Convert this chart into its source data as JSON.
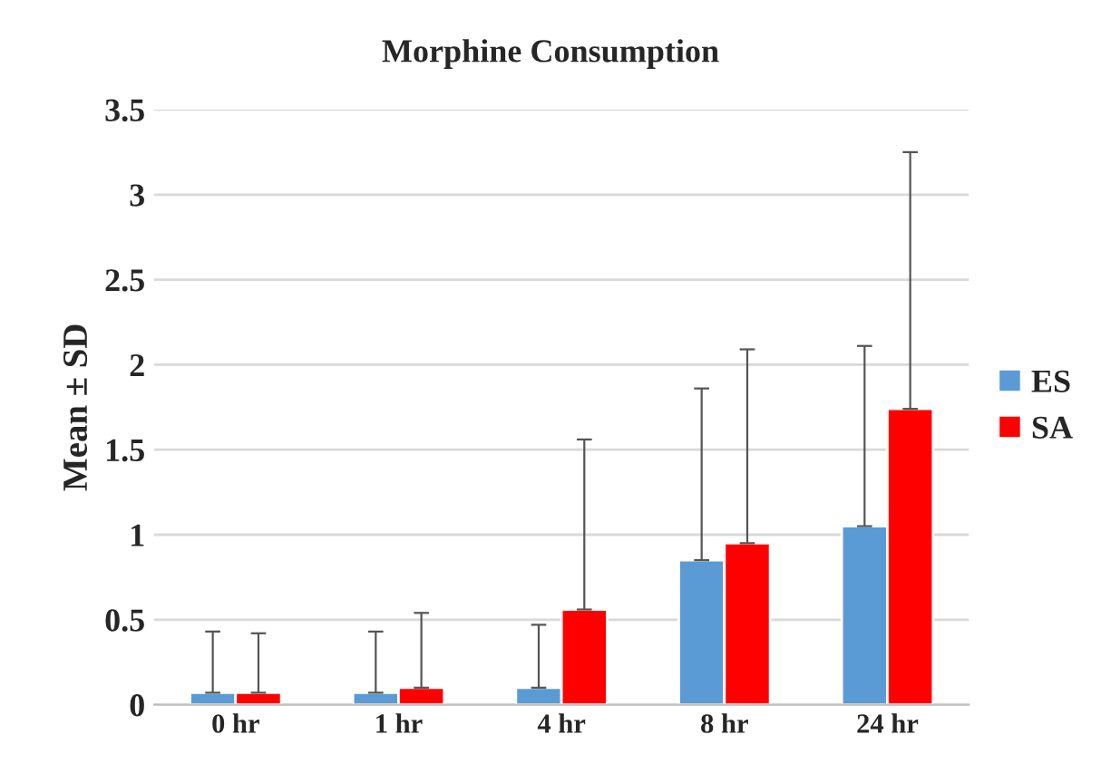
{
  "chart_data": {
    "type": "bar",
    "title": "Morphine Consumption",
    "ylabel": "Mean ± SD",
    "categories": [
      "0 hr",
      "1 hr",
      "4 hr",
      "8 hr",
      "24 hr"
    ],
    "series": [
      {
        "name": "ES",
        "color": "#5b9bd5",
        "values": [
          0.07,
          0.07,
          0.1,
          0.85,
          1.05
        ],
        "errors": [
          [
            0.07,
            0.43
          ],
          [
            0.07,
            0.43
          ],
          [
            0.1,
            0.47
          ],
          [
            0.85,
            1.86
          ],
          [
            1.05,
            2.11
          ]
        ]
      },
      {
        "name": "SA",
        "color": "#ff0000",
        "values": [
          0.07,
          0.1,
          0.56,
          0.95,
          1.74
        ],
        "errors": [
          [
            0.07,
            0.42
          ],
          [
            0.1,
            0.54
          ],
          [
            0.56,
            1.56
          ],
          [
            0.95,
            2.09
          ],
          [
            1.74,
            3.25
          ]
        ]
      }
    ],
    "ylim": [
      0,
      3.5
    ],
    "yticks": [
      0,
      0.5,
      1,
      1.5,
      2,
      2.5,
      3,
      3.5
    ],
    "grid": "y",
    "legend": "right"
  }
}
